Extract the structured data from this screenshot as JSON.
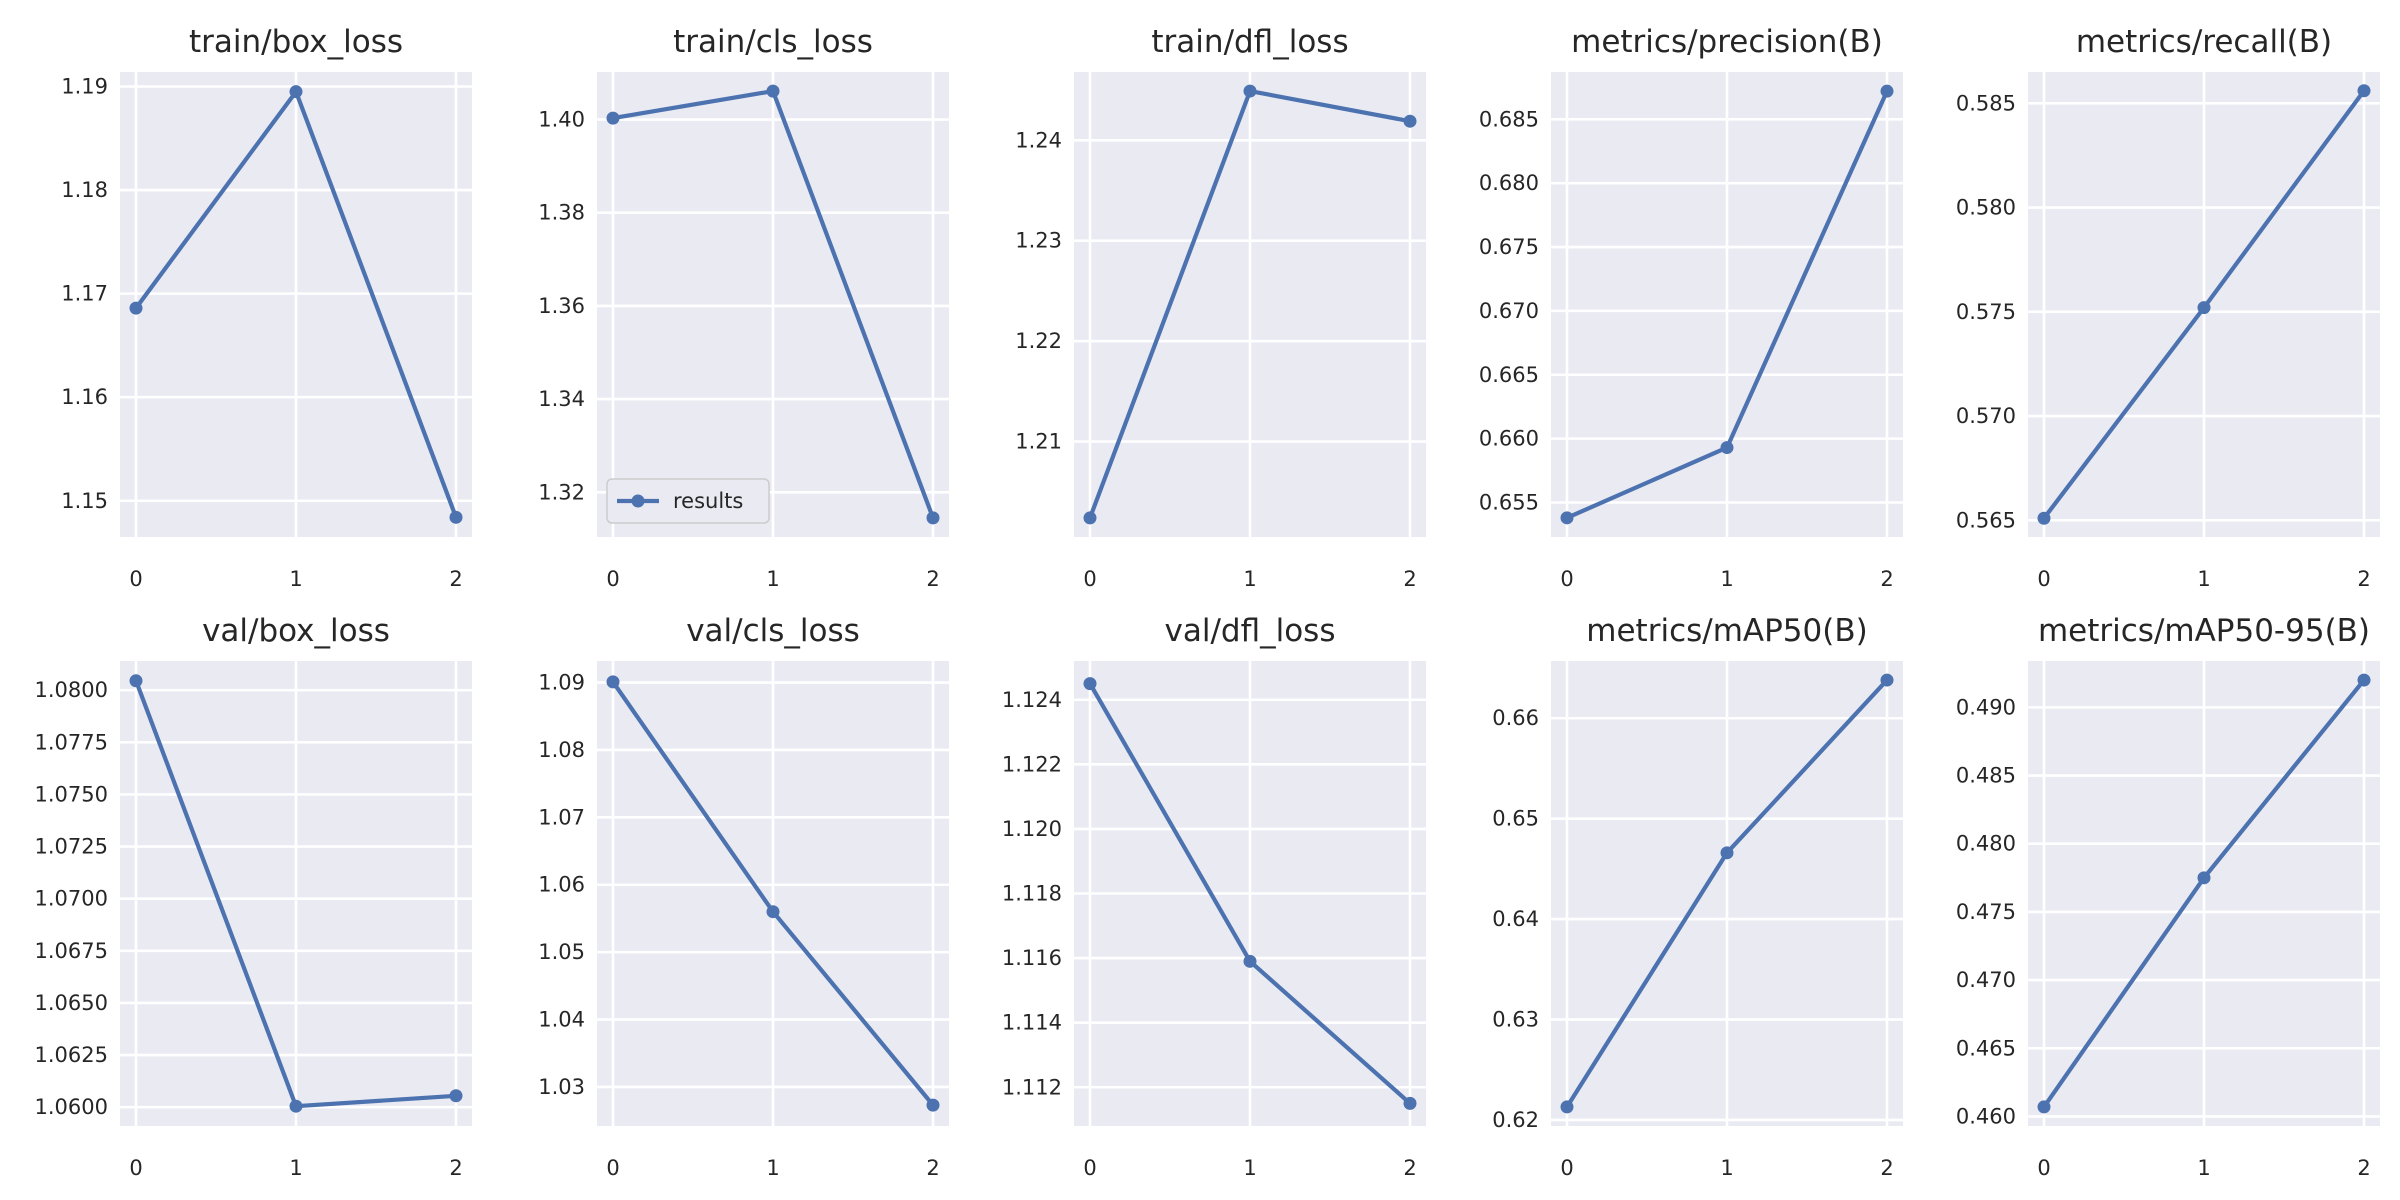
{
  "figure": {
    "colors": {
      "background": "#ffffff",
      "plot_bg": "#eaeaf2",
      "grid": "#ffffff",
      "series": "#4c72b0",
      "text": "#262626"
    }
  },
  "chart_data": [
    {
      "type": "line",
      "title": "train/box_loss",
      "x": [
        0,
        1,
        2
      ],
      "series": [
        {
          "name": "results",
          "values": [
            1.1686,
            1.1895,
            1.1484
          ]
        }
      ],
      "xticks": [
        "0",
        "1",
        "2"
      ],
      "yticks": [
        "1.15",
        "1.16",
        "1.17",
        "1.18",
        "1.19"
      ],
      "xlim": [
        -0.1,
        2.1
      ],
      "ylim": [
        1.1465,
        1.1914
      ],
      "grid": true
    },
    {
      "type": "line",
      "title": "train/cls_loss",
      "x": [
        0,
        1,
        2
      ],
      "series": [
        {
          "name": "results",
          "values": [
            1.4003,
            1.4061,
            1.3145
          ]
        }
      ],
      "xticks": [
        "0",
        "1",
        "2"
      ],
      "yticks": [
        "1.32",
        "1.34",
        "1.36",
        "1.38",
        "1.40"
      ],
      "xlim": [
        -0.1,
        2.1
      ],
      "ylim": [
        1.3104,
        1.4102
      ],
      "grid": true,
      "legend": {
        "label": "results",
        "placement": "lower left"
      }
    },
    {
      "type": "line",
      "title": "train/dfl_loss",
      "x": [
        0,
        1,
        2
      ],
      "series": [
        {
          "name": "results",
          "values": [
            1.2024,
            1.2449,
            1.2419
          ]
        }
      ],
      "xticks": [
        "0",
        "1",
        "2"
      ],
      "yticks": [
        "1.21",
        "1.22",
        "1.23",
        "1.24"
      ],
      "xlim": [
        -0.1,
        2.1
      ],
      "ylim": [
        1.2005,
        1.2468
      ],
      "grid": true
    },
    {
      "type": "line",
      "title": "metrics/precision(B)",
      "x": [
        0,
        1,
        2
      ],
      "series": [
        {
          "name": "results",
          "values": [
            0.6538,
            0.6593,
            0.6872
          ]
        }
      ],
      "xticks": [
        "0",
        "1",
        "2"
      ],
      "yticks": [
        "0.655",
        "0.660",
        "0.665",
        "0.670",
        "0.675",
        "0.680",
        "0.685"
      ],
      "xlim": [
        -0.1,
        2.1
      ],
      "ylim": [
        0.6523,
        0.6887
      ],
      "grid": true
    },
    {
      "type": "line",
      "title": "metrics/recall(B)",
      "x": [
        0,
        1,
        2
      ],
      "series": [
        {
          "name": "results",
          "values": [
            0.5651,
            0.5752,
            0.5856
          ]
        }
      ],
      "xticks": [
        "0",
        "1",
        "2"
      ],
      "yticks": [
        "0.565",
        "0.570",
        "0.575",
        "0.580",
        "0.585"
      ],
      "xlim": [
        -0.1,
        2.1
      ],
      "ylim": [
        0.5642,
        0.5865
      ],
      "grid": true
    },
    {
      "type": "line",
      "title": "val/box_loss",
      "x": [
        0,
        1,
        2
      ],
      "series": [
        {
          "name": "results",
          "values": [
            1.08045,
            1.06005,
            1.06055
          ]
        }
      ],
      "xticks": [
        "0",
        "1",
        "2"
      ],
      "yticks": [
        "1.0600",
        "1.0625",
        "1.0650",
        "1.0675",
        "1.0700",
        "1.0725",
        "1.0750",
        "1.0775",
        "1.0800"
      ],
      "xlim": [
        -0.1,
        2.1
      ],
      "ylim": [
        1.0591,
        1.0814
      ],
      "grid": true
    },
    {
      "type": "line",
      "title": "val/cls_loss",
      "x": [
        0,
        1,
        2
      ],
      "series": [
        {
          "name": "results",
          "values": [
            1.0901,
            1.056,
            1.0273
          ]
        }
      ],
      "xticks": [
        "0",
        "1",
        "2"
      ],
      "yticks": [
        "1.03",
        "1.04",
        "1.05",
        "1.06",
        "1.07",
        "1.08",
        "1.09"
      ],
      "xlim": [
        -0.1,
        2.1
      ],
      "ylim": [
        1.0242,
        1.0932
      ],
      "grid": true
    },
    {
      "type": "line",
      "title": "val/dfl_loss",
      "x": [
        0,
        1,
        2
      ],
      "series": [
        {
          "name": "results",
          "values": [
            1.1245,
            1.1159,
            1.1115
          ]
        }
      ],
      "xticks": [
        "0",
        "1",
        "2"
      ],
      "yticks": [
        "1.112",
        "1.114",
        "1.116",
        "1.118",
        "1.120",
        "1.122",
        "1.124"
      ],
      "xlim": [
        -0.1,
        2.1
      ],
      "ylim": [
        1.1108,
        1.1252
      ],
      "grid": true
    },
    {
      "type": "line",
      "title": "metrics/mAP50(B)",
      "x": [
        0,
        1,
        2
      ],
      "series": [
        {
          "name": "results",
          "values": [
            0.6213,
            0.6466,
            0.6638
          ]
        }
      ],
      "xticks": [
        "0",
        "1",
        "2"
      ],
      "yticks": [
        "0.62",
        "0.63",
        "0.64",
        "0.65",
        "0.66"
      ],
      "xlim": [
        -0.1,
        2.1
      ],
      "ylim": [
        0.6194,
        0.6657
      ],
      "grid": true
    },
    {
      "type": "line",
      "title": "metrics/mAP50-95(B)",
      "x": [
        0,
        1,
        2
      ],
      "series": [
        {
          "name": "results",
          "values": [
            0.4607,
            0.4775,
            0.492
          ]
        }
      ],
      "xticks": [
        "0",
        "1",
        "2"
      ],
      "yticks": [
        "0.460",
        "0.465",
        "0.470",
        "0.475",
        "0.480",
        "0.485",
        "0.490"
      ],
      "xlim": [
        -0.1,
        2.1
      ],
      "ylim": [
        0.4593,
        0.4934
      ],
      "grid": true
    }
  ]
}
